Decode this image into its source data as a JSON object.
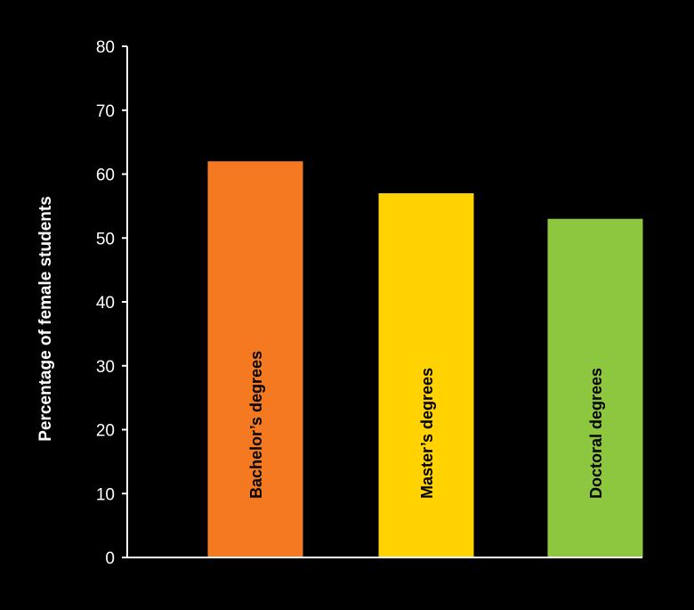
{
  "chart_data": {
    "type": "bar",
    "title": "",
    "xlabel": "",
    "ylabel": "Percentage of female students",
    "ylim": [
      0,
      80
    ],
    "yticks": [
      0,
      10,
      20,
      30,
      40,
      50,
      60,
      70,
      80
    ],
    "categories": [
      "Bachelor’s degrees",
      "Master’s degrees",
      "Doctoral degrees"
    ],
    "values": [
      62,
      57,
      53
    ],
    "colors": [
      "#f47920",
      "#ffd200",
      "#8dc63f"
    ],
    "labels_inside_bars": true,
    "grid": false,
    "legend": "none"
  },
  "style": {
    "background": "#000000",
    "axis_color": "#ffffff",
    "label_color": "#ffffff",
    "bar_label_color": "#000000"
  }
}
